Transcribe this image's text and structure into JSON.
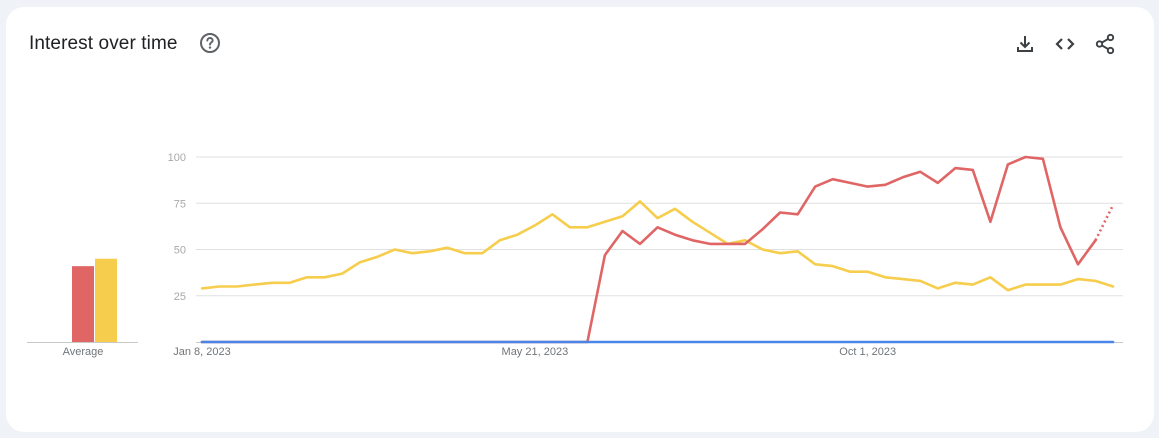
{
  "header": {
    "title": "Interest over time",
    "help_icon": "help-circle-icon",
    "download_icon": "download-icon",
    "embed_icon": "code-embed-icon",
    "share_icon": "share-icon"
  },
  "colors": {
    "series_red": "#e06666",
    "series_yellow": "#f6cd4c",
    "series_blue": "#4a86e8",
    "grid": "#e0e0e0",
    "axis_text": "#a8a8a8",
    "label_text": "#70757a"
  },
  "average": {
    "label": "Average",
    "values": [
      41,
      45
    ]
  },
  "chart_data": {
    "type": "line",
    "title": "Interest over time",
    "xlabel": "",
    "ylabel": "",
    "ylim": [
      0,
      100
    ],
    "yticks": [
      25,
      50,
      75,
      100
    ],
    "xtick_labels": [
      {
        "index": 0,
        "label": "Jan 8, 2023"
      },
      {
        "index": 19,
        "label": "May 21, 2023"
      },
      {
        "index": 38,
        "label": "Oct 1, 2023"
      }
    ],
    "start_date": "2023-01-08",
    "interval": "weekly",
    "grid": true,
    "partial_last_point": true,
    "series": [
      {
        "color": "#e06666",
        "values": [
          0,
          0,
          0,
          0,
          0,
          0,
          0,
          0,
          0,
          0,
          0,
          0,
          0,
          0,
          0,
          0,
          0,
          0,
          0,
          0,
          0,
          0,
          0,
          47,
          60,
          53,
          62,
          58,
          55,
          53,
          53,
          53,
          61,
          70,
          69,
          84,
          88,
          86,
          84,
          85,
          89,
          92,
          86,
          94,
          93,
          65,
          96,
          100,
          99,
          62,
          42,
          55,
          74
        ]
      },
      {
        "color": "#f6cd4c",
        "values": [
          29,
          30,
          30,
          31,
          32,
          32,
          35,
          35,
          37,
          43,
          46,
          50,
          48,
          49,
          51,
          48,
          48,
          55,
          58,
          63,
          69,
          62,
          62,
          65,
          68,
          76,
          67,
          72,
          65,
          59,
          53,
          55,
          50,
          48,
          49,
          42,
          41,
          38,
          38,
          35,
          34,
          33,
          29,
          32,
          31,
          35,
          28,
          31,
          31,
          31,
          34,
          33,
          30
        ]
      },
      {
        "color": "#4a86e8",
        "values": [
          0,
          0,
          0,
          0,
          0,
          0,
          0,
          0,
          0,
          0,
          0,
          0,
          0,
          0,
          0,
          0,
          0,
          0,
          0,
          0,
          0,
          0,
          0,
          0,
          0,
          0,
          0,
          0,
          0,
          0,
          0,
          0,
          0,
          0,
          0,
          0,
          0,
          0,
          0,
          0,
          0,
          0,
          0,
          0,
          0,
          0,
          0,
          0,
          0,
          0,
          0,
          0,
          0
        ]
      }
    ]
  }
}
